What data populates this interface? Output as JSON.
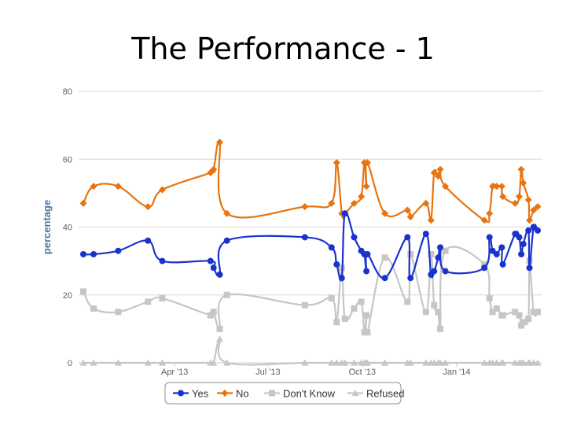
{
  "slide": {
    "title": "The Performance - 1"
  },
  "chart_data": {
    "type": "line",
    "title": "",
    "ylabel": "percentage",
    "xlabel": "",
    "ylim": [
      0,
      80
    ],
    "y_ticks": [
      0,
      20,
      40,
      60,
      80
    ],
    "x_ticks": [
      {
        "label": "Apr '13",
        "date": "2013-04-01"
      },
      {
        "label": "Jul '13",
        "date": "2013-07-01"
      },
      {
        "label": "Oct '13",
        "date": "2013-10-01"
      },
      {
        "label": "Jan '14",
        "date": "2014-01-01"
      }
    ],
    "x_range": [
      "2013-01-02",
      "2014-03-21"
    ],
    "grid": true,
    "legend_position": "bottom-center",
    "series": [
      {
        "name": "Yes",
        "color": "#1a33cc",
        "marker": "circle",
        "points": [
          [
            "2013-01-02",
            32
          ],
          [
            "2013-01-12",
            32
          ],
          [
            "2013-02-05",
            33
          ],
          [
            "2013-03-06",
            36
          ],
          [
            "2013-03-20",
            30
          ],
          [
            "2013-05-06",
            30
          ],
          [
            "2013-05-09",
            28
          ],
          [
            "2013-05-15",
            26
          ],
          [
            "2013-05-22",
            36
          ],
          [
            "2013-08-06",
            37
          ],
          [
            "2013-09-01",
            34
          ],
          [
            "2013-09-06",
            29
          ],
          [
            "2013-09-11",
            25
          ],
          [
            "2013-09-14",
            44
          ],
          [
            "2013-09-23",
            37
          ],
          [
            "2013-09-30",
            33
          ],
          [
            "2013-10-03",
            32
          ],
          [
            "2013-10-05",
            27
          ],
          [
            "2013-10-06",
            32
          ],
          [
            "2013-10-23",
            25
          ],
          [
            "2013-11-14",
            37
          ],
          [
            "2013-11-17",
            25
          ],
          [
            "2013-12-02",
            38
          ],
          [
            "2013-12-07",
            26
          ],
          [
            "2013-12-10",
            27
          ],
          [
            "2013-12-14",
            31
          ],
          [
            "2013-12-16",
            34
          ],
          [
            "2013-12-21",
            27
          ],
          [
            "2014-01-28",
            28
          ],
          [
            "2014-02-02",
            37
          ],
          [
            "2014-02-05",
            33
          ],
          [
            "2014-02-09",
            32
          ],
          [
            "2014-02-14",
            34
          ],
          [
            "2014-02-15",
            29
          ],
          [
            "2014-02-27",
            38
          ],
          [
            "2014-03-03",
            37
          ],
          [
            "2014-03-05",
            32
          ],
          [
            "2014-03-07",
            35
          ],
          [
            "2014-03-12",
            39
          ],
          [
            "2014-03-13",
            28
          ],
          [
            "2014-03-17",
            40
          ],
          [
            "2014-03-21",
            39
          ]
        ]
      },
      {
        "name": "No",
        "color": "#e8730f",
        "marker": "diamond",
        "points": [
          [
            "2013-01-02",
            47
          ],
          [
            "2013-01-12",
            52
          ],
          [
            "2013-02-05",
            52
          ],
          [
            "2013-03-06",
            46
          ],
          [
            "2013-03-20",
            51
          ],
          [
            "2013-05-06",
            56
          ],
          [
            "2013-05-09",
            57
          ],
          [
            "2013-05-15",
            65
          ],
          [
            "2013-05-22",
            44
          ],
          [
            "2013-08-06",
            46
          ],
          [
            "2013-09-01",
            47
          ],
          [
            "2013-09-06",
            59
          ],
          [
            "2013-09-11",
            44
          ],
          [
            "2013-09-14",
            44
          ],
          [
            "2013-09-23",
            47
          ],
          [
            "2013-09-30",
            49
          ],
          [
            "2013-10-03",
            59
          ],
          [
            "2013-10-05",
            52
          ],
          [
            "2013-10-06",
            59
          ],
          [
            "2013-10-23",
            44
          ],
          [
            "2013-11-14",
            45
          ],
          [
            "2013-11-17",
            43
          ],
          [
            "2013-12-02",
            47
          ],
          [
            "2013-12-07",
            42
          ],
          [
            "2013-12-10",
            56
          ],
          [
            "2013-12-14",
            55
          ],
          [
            "2013-12-16",
            57
          ],
          [
            "2013-12-21",
            52
          ],
          [
            "2014-01-28",
            42
          ],
          [
            "2014-02-02",
            44
          ],
          [
            "2014-02-05",
            52
          ],
          [
            "2014-02-09",
            52
          ],
          [
            "2014-02-14",
            52
          ],
          [
            "2014-02-15",
            49
          ],
          [
            "2014-02-27",
            47
          ],
          [
            "2014-03-03",
            49
          ],
          [
            "2014-03-05",
            57
          ],
          [
            "2014-03-07",
            53
          ],
          [
            "2014-03-12",
            48
          ],
          [
            "2014-03-13",
            42
          ],
          [
            "2014-03-17",
            45
          ],
          [
            "2014-03-21",
            46
          ]
        ]
      },
      {
        "name": "Don't Know",
        "color": "#c6c6c6",
        "marker": "square",
        "points": [
          [
            "2013-01-02",
            21
          ],
          [
            "2013-01-12",
            16
          ],
          [
            "2013-02-05",
            15
          ],
          [
            "2013-03-06",
            18
          ],
          [
            "2013-03-20",
            19
          ],
          [
            "2013-05-06",
            14
          ],
          [
            "2013-05-09",
            15
          ],
          [
            "2013-05-15",
            10
          ],
          [
            "2013-05-22",
            20
          ],
          [
            "2013-08-06",
            17
          ],
          [
            "2013-09-01",
            19
          ],
          [
            "2013-09-06",
            12
          ],
          [
            "2013-09-11",
            28
          ],
          [
            "2013-09-14",
            13
          ],
          [
            "2013-09-23",
            16
          ],
          [
            "2013-09-30",
            18
          ],
          [
            "2013-10-03",
            9
          ],
          [
            "2013-10-05",
            14
          ],
          [
            "2013-10-06",
            9
          ],
          [
            "2013-10-23",
            31
          ],
          [
            "2013-11-14",
            18
          ],
          [
            "2013-11-17",
            32
          ],
          [
            "2013-12-02",
            15
          ],
          [
            "2013-12-07",
            32
          ],
          [
            "2013-12-10",
            17
          ],
          [
            "2013-12-14",
            15
          ],
          [
            "2013-12-16",
            10
          ],
          [
            "2013-12-21",
            33
          ],
          [
            "2014-01-28",
            29
          ],
          [
            "2014-02-02",
            19
          ],
          [
            "2014-02-05",
            15
          ],
          [
            "2014-02-09",
            16
          ],
          [
            "2014-02-14",
            14
          ],
          [
            "2014-02-15",
            14
          ],
          [
            "2014-02-27",
            15
          ],
          [
            "2014-03-03",
            14
          ],
          [
            "2014-03-05",
            11
          ],
          [
            "2014-03-07",
            12
          ],
          [
            "2014-03-12",
            13
          ],
          [
            "2014-03-13",
            30
          ],
          [
            "2014-03-17",
            15
          ],
          [
            "2014-03-21",
            15
          ]
        ]
      },
      {
        "name": "Refused",
        "color": "#c6c6c6",
        "marker": "triangle",
        "points": [
          [
            "2013-01-02",
            0
          ],
          [
            "2013-01-12",
            0
          ],
          [
            "2013-02-05",
            0
          ],
          [
            "2013-03-06",
            0
          ],
          [
            "2013-03-20",
            0
          ],
          [
            "2013-05-06",
            0
          ],
          [
            "2013-05-09",
            0
          ],
          [
            "2013-05-15",
            7
          ],
          [
            "2013-05-22",
            0
          ],
          [
            "2013-08-06",
            0
          ],
          [
            "2013-09-01",
            0
          ],
          [
            "2013-09-06",
            0
          ],
          [
            "2013-09-11",
            0
          ],
          [
            "2013-09-14",
            0
          ],
          [
            "2013-09-23",
            0
          ],
          [
            "2013-09-30",
            0
          ],
          [
            "2013-10-03",
            0
          ],
          [
            "2013-10-05",
            0
          ],
          [
            "2013-10-06",
            0
          ],
          [
            "2013-10-23",
            0
          ],
          [
            "2013-11-14",
            0
          ],
          [
            "2013-11-17",
            0
          ],
          [
            "2013-12-02",
            0
          ],
          [
            "2013-12-07",
            0
          ],
          [
            "2013-12-10",
            0
          ],
          [
            "2013-12-14",
            0
          ],
          [
            "2013-12-16",
            0
          ],
          [
            "2013-12-21",
            0
          ],
          [
            "2014-01-28",
            0
          ],
          [
            "2014-02-02",
            0
          ],
          [
            "2014-02-05",
            0
          ],
          [
            "2014-02-09",
            0
          ],
          [
            "2014-02-14",
            0
          ],
          [
            "2014-02-15",
            0
          ],
          [
            "2014-02-27",
            0
          ],
          [
            "2014-03-03",
            0
          ],
          [
            "2014-03-05",
            0
          ],
          [
            "2014-03-07",
            0
          ],
          [
            "2014-03-12",
            0
          ],
          [
            "2014-03-13",
            0
          ],
          [
            "2014-03-17",
            0
          ],
          [
            "2014-03-21",
            0
          ]
        ]
      }
    ]
  }
}
